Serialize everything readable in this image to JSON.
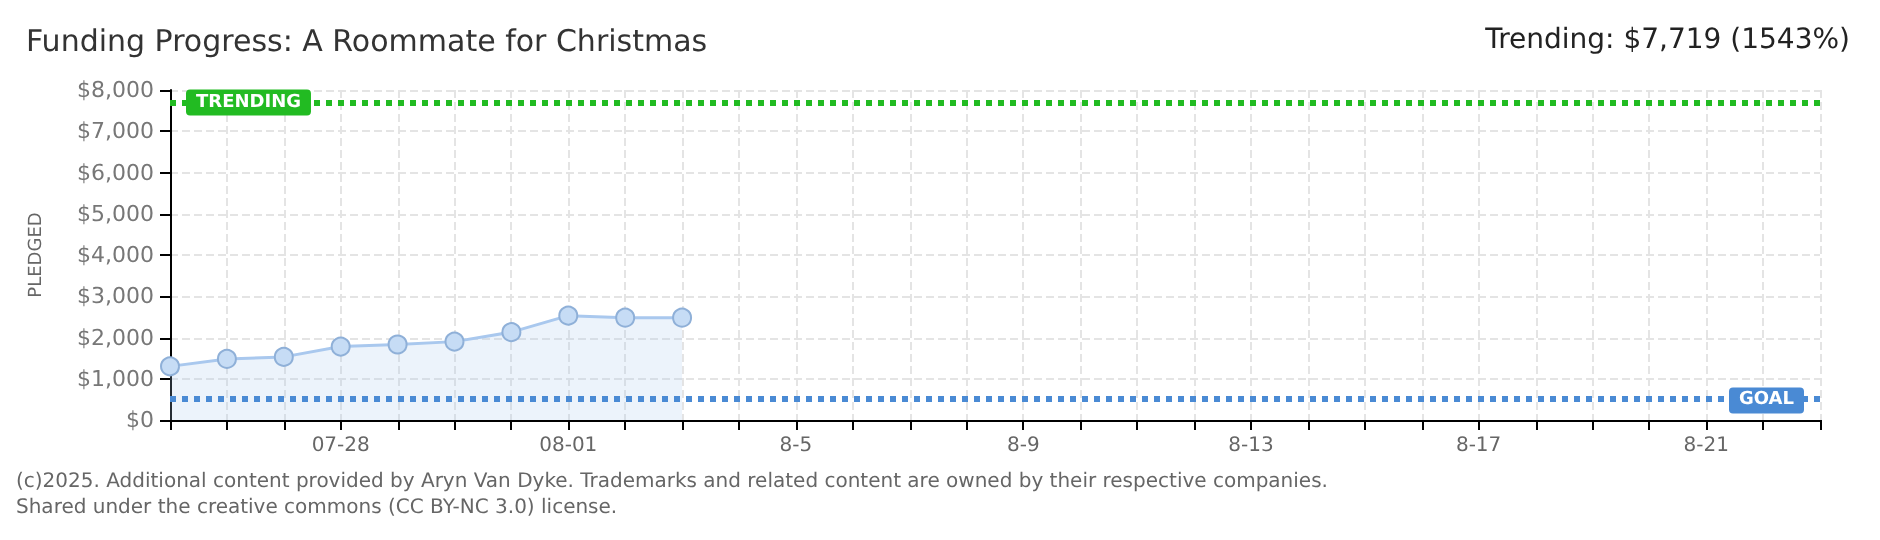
{
  "chart_data": {
    "type": "area",
    "title": "Funding Progress: A Roommate for Christmas",
    "subtitle": "Trending: $7,719 (1543%)",
    "ylabel": "PLEDGED",
    "categories": [
      null,
      null,
      null,
      "07-28",
      null,
      null,
      null,
      "08-01",
      null,
      null,
      null,
      "8-5",
      null,
      null,
      null,
      "8-9",
      null,
      null,
      null,
      "8-13",
      null,
      null,
      null,
      "8-17",
      null,
      null,
      null,
      "8-21",
      null,
      null
    ],
    "series": [
      {
        "color": "#a9c8ee",
        "values": [
          1300,
          1480,
          1530,
          1780,
          1830,
          1900,
          2130,
          2530,
          2480,
          2480,
          null,
          null,
          null,
          null,
          null,
          null,
          null,
          null,
          null,
          null,
          null,
          null,
          null,
          null,
          null,
          null,
          null,
          null,
          null,
          null
        ]
      }
    ],
    "ylim": [
      0,
      8000
    ],
    "yticks": [
      {
        "value": 0,
        "label": "$0"
      },
      {
        "value": 1000,
        "label": "$1,000"
      },
      {
        "value": 2000,
        "label": "$2,000"
      },
      {
        "value": 3000,
        "label": "$3,000"
      },
      {
        "value": 4000,
        "label": "$4,000"
      },
      {
        "value": 5000,
        "label": "$5,000"
      },
      {
        "value": 6000,
        "label": "$6,000"
      },
      {
        "value": 7000,
        "label": "$7,000"
      },
      {
        "value": 8000,
        "label": "$8,000"
      }
    ],
    "ref_lines": [
      {
        "axis": "y",
        "value": 7719,
        "label": "TRENDING",
        "color": "#22bb22",
        "line_style": "dotted"
      },
      {
        "axis": "y",
        "value": 500,
        "label": "GOAL",
        "color": "#4a8ad4",
        "line_style": "dotted"
      }
    ],
    "annotations": [
      "(c)2025. Additional content provided by Aryn Van Dyke. Trademarks and related content are owned by their respective companies.",
      "Shared under the creative commons (CC BY-NC 3.0) license."
    ],
    "grid": true,
    "marker": "circle"
  }
}
